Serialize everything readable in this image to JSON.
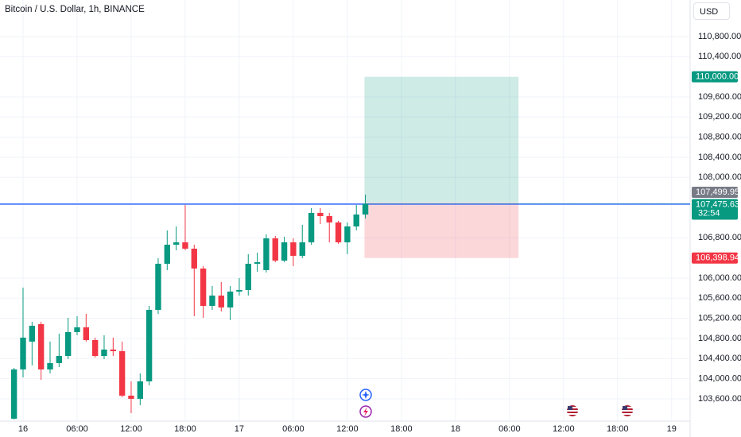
{
  "header": {
    "symbol": "Bitcoin / U.S. Dollar, 1h, BINANCE",
    "currency": "USD"
  },
  "chart_data": {
    "type": "candlestick",
    "up_color": "#089981",
    "down_color": "#f23645",
    "x": [
      -1,
      0,
      1,
      2,
      3,
      4,
      5,
      6,
      7,
      8,
      9,
      10,
      11,
      12,
      13,
      14,
      15,
      16,
      17,
      18,
      19,
      20,
      21,
      22,
      23,
      24,
      25,
      26,
      27,
      28,
      29,
      30,
      31,
      32,
      33,
      34,
      35,
      36,
      37,
      38
    ],
    "open": [
      103205,
      104184,
      104737,
      105084,
      104184,
      104310,
      104452,
      104926,
      105021,
      104768,
      104452,
      104579,
      104547,
      103663,
      103600,
      103947,
      105368,
      106284,
      106663,
      106710,
      106584,
      106189,
      105447,
      105652,
      105416,
      105731,
      105763,
      106284,
      106158,
      106789,
      106347,
      106710,
      106442,
      106710,
      107295,
      107231,
      107105,
      106710,
      107026,
      107263
    ],
    "high": [
      104216,
      105810,
      105131,
      105131,
      104737,
      104895,
      105210,
      105242,
      105289,
      104816,
      104863,
      104816,
      104737,
      103947,
      104105,
      105447,
      106395,
      106947,
      107026,
      107453,
      106663,
      106237,
      105842,
      105921,
      105842,
      106000,
      106474,
      106505,
      106868,
      106837,
      106821,
      106789,
      107058,
      107389,
      107389,
      107295,
      107137,
      107105,
      107453,
      107658
    ],
    "low": [
      103189,
      104026,
      104263,
      103979,
      104105,
      104231,
      104389,
      104863,
      104737,
      104421,
      104389,
      104452,
      103631,
      103316,
      103473,
      103868,
      105289,
      106158,
      106552,
      106552,
      105242,
      105210,
      105368,
      105337,
      105163,
      105652,
      105652,
      106126,
      106110,
      106316,
      106316,
      106237,
      106395,
      106663,
      107074,
      106710,
      106679,
      106474,
      106947,
      107184
    ],
    "close": [
      104184,
      104816,
      105052,
      104184,
      104310,
      104452,
      104926,
      105021,
      104768,
      104452,
      104579,
      104547,
      103663,
      103600,
      103947,
      105368,
      106284,
      106663,
      106710,
      106584,
      106189,
      105447,
      105652,
      105416,
      105731,
      105763,
      106284,
      106316,
      106789,
      106347,
      106710,
      106442,
      106710,
      107295,
      107231,
      107105,
      106710,
      107026,
      107263,
      107475.63
    ],
    "xlim": [
      -2.56,
      74.05
    ],
    "xticks": [
      {
        "value": 0,
        "label": "16"
      },
      {
        "value": 6,
        "label": "06:00"
      },
      {
        "value": 12,
        "label": "12:00"
      },
      {
        "value": 18,
        "label": "18:00"
      },
      {
        "value": 24,
        "label": "17"
      },
      {
        "value": 30,
        "label": "06:00"
      },
      {
        "value": 36,
        "label": "12:00"
      },
      {
        "value": 42,
        "label": "18:00"
      },
      {
        "value": 48,
        "label": "18"
      },
      {
        "value": 54,
        "label": "06:00"
      },
      {
        "value": 60,
        "label": "12:00"
      },
      {
        "value": 66,
        "label": "18:00"
      },
      {
        "value": 72,
        "label": "19"
      }
    ],
    "ylim": [
      103157,
      111526
    ],
    "yticks": [
      {
        "value": 110800,
        "label": "110,800.00"
      },
      {
        "value": 110400,
        "label": "110,400.00"
      },
      {
        "value": 109600,
        "label": "109,600.00"
      },
      {
        "value": 109200,
        "label": "109,200.00"
      },
      {
        "value": 108800,
        "label": "108,800.00"
      },
      {
        "value": 108400,
        "label": "108,400.00"
      },
      {
        "value": 108000,
        "label": "108,000.00"
      },
      {
        "value": 106800,
        "label": "106,800.00"
      },
      {
        "value": 106000,
        "label": "106,000.00"
      },
      {
        "value": 105600,
        "label": "105,600.00"
      },
      {
        "value": 105200,
        "label": "105,200.00"
      },
      {
        "value": 104800,
        "label": "104,800.00"
      },
      {
        "value": 104400,
        "label": "104,400.00"
      },
      {
        "value": 104000,
        "label": "104,000.00"
      },
      {
        "value": 103600,
        "label": "103,600.00"
      }
    ],
    "grid": true,
    "horizontal_line": {
      "value": 107470,
      "color": "#2962ff"
    },
    "position": {
      "x_start": 37.9,
      "x_end": 55,
      "entry": 107499.95,
      "entry_label": "107,499.95",
      "target": 110000,
      "target_label": "110,000.00",
      "stop": 106398.94,
      "stop_label": "106,398.94",
      "profit_color": "#089981",
      "loss_color": "#f23645"
    },
    "last_price": {
      "value": 107475.63,
      "label": "107,475.63",
      "countdown": "32:54"
    }
  }
}
